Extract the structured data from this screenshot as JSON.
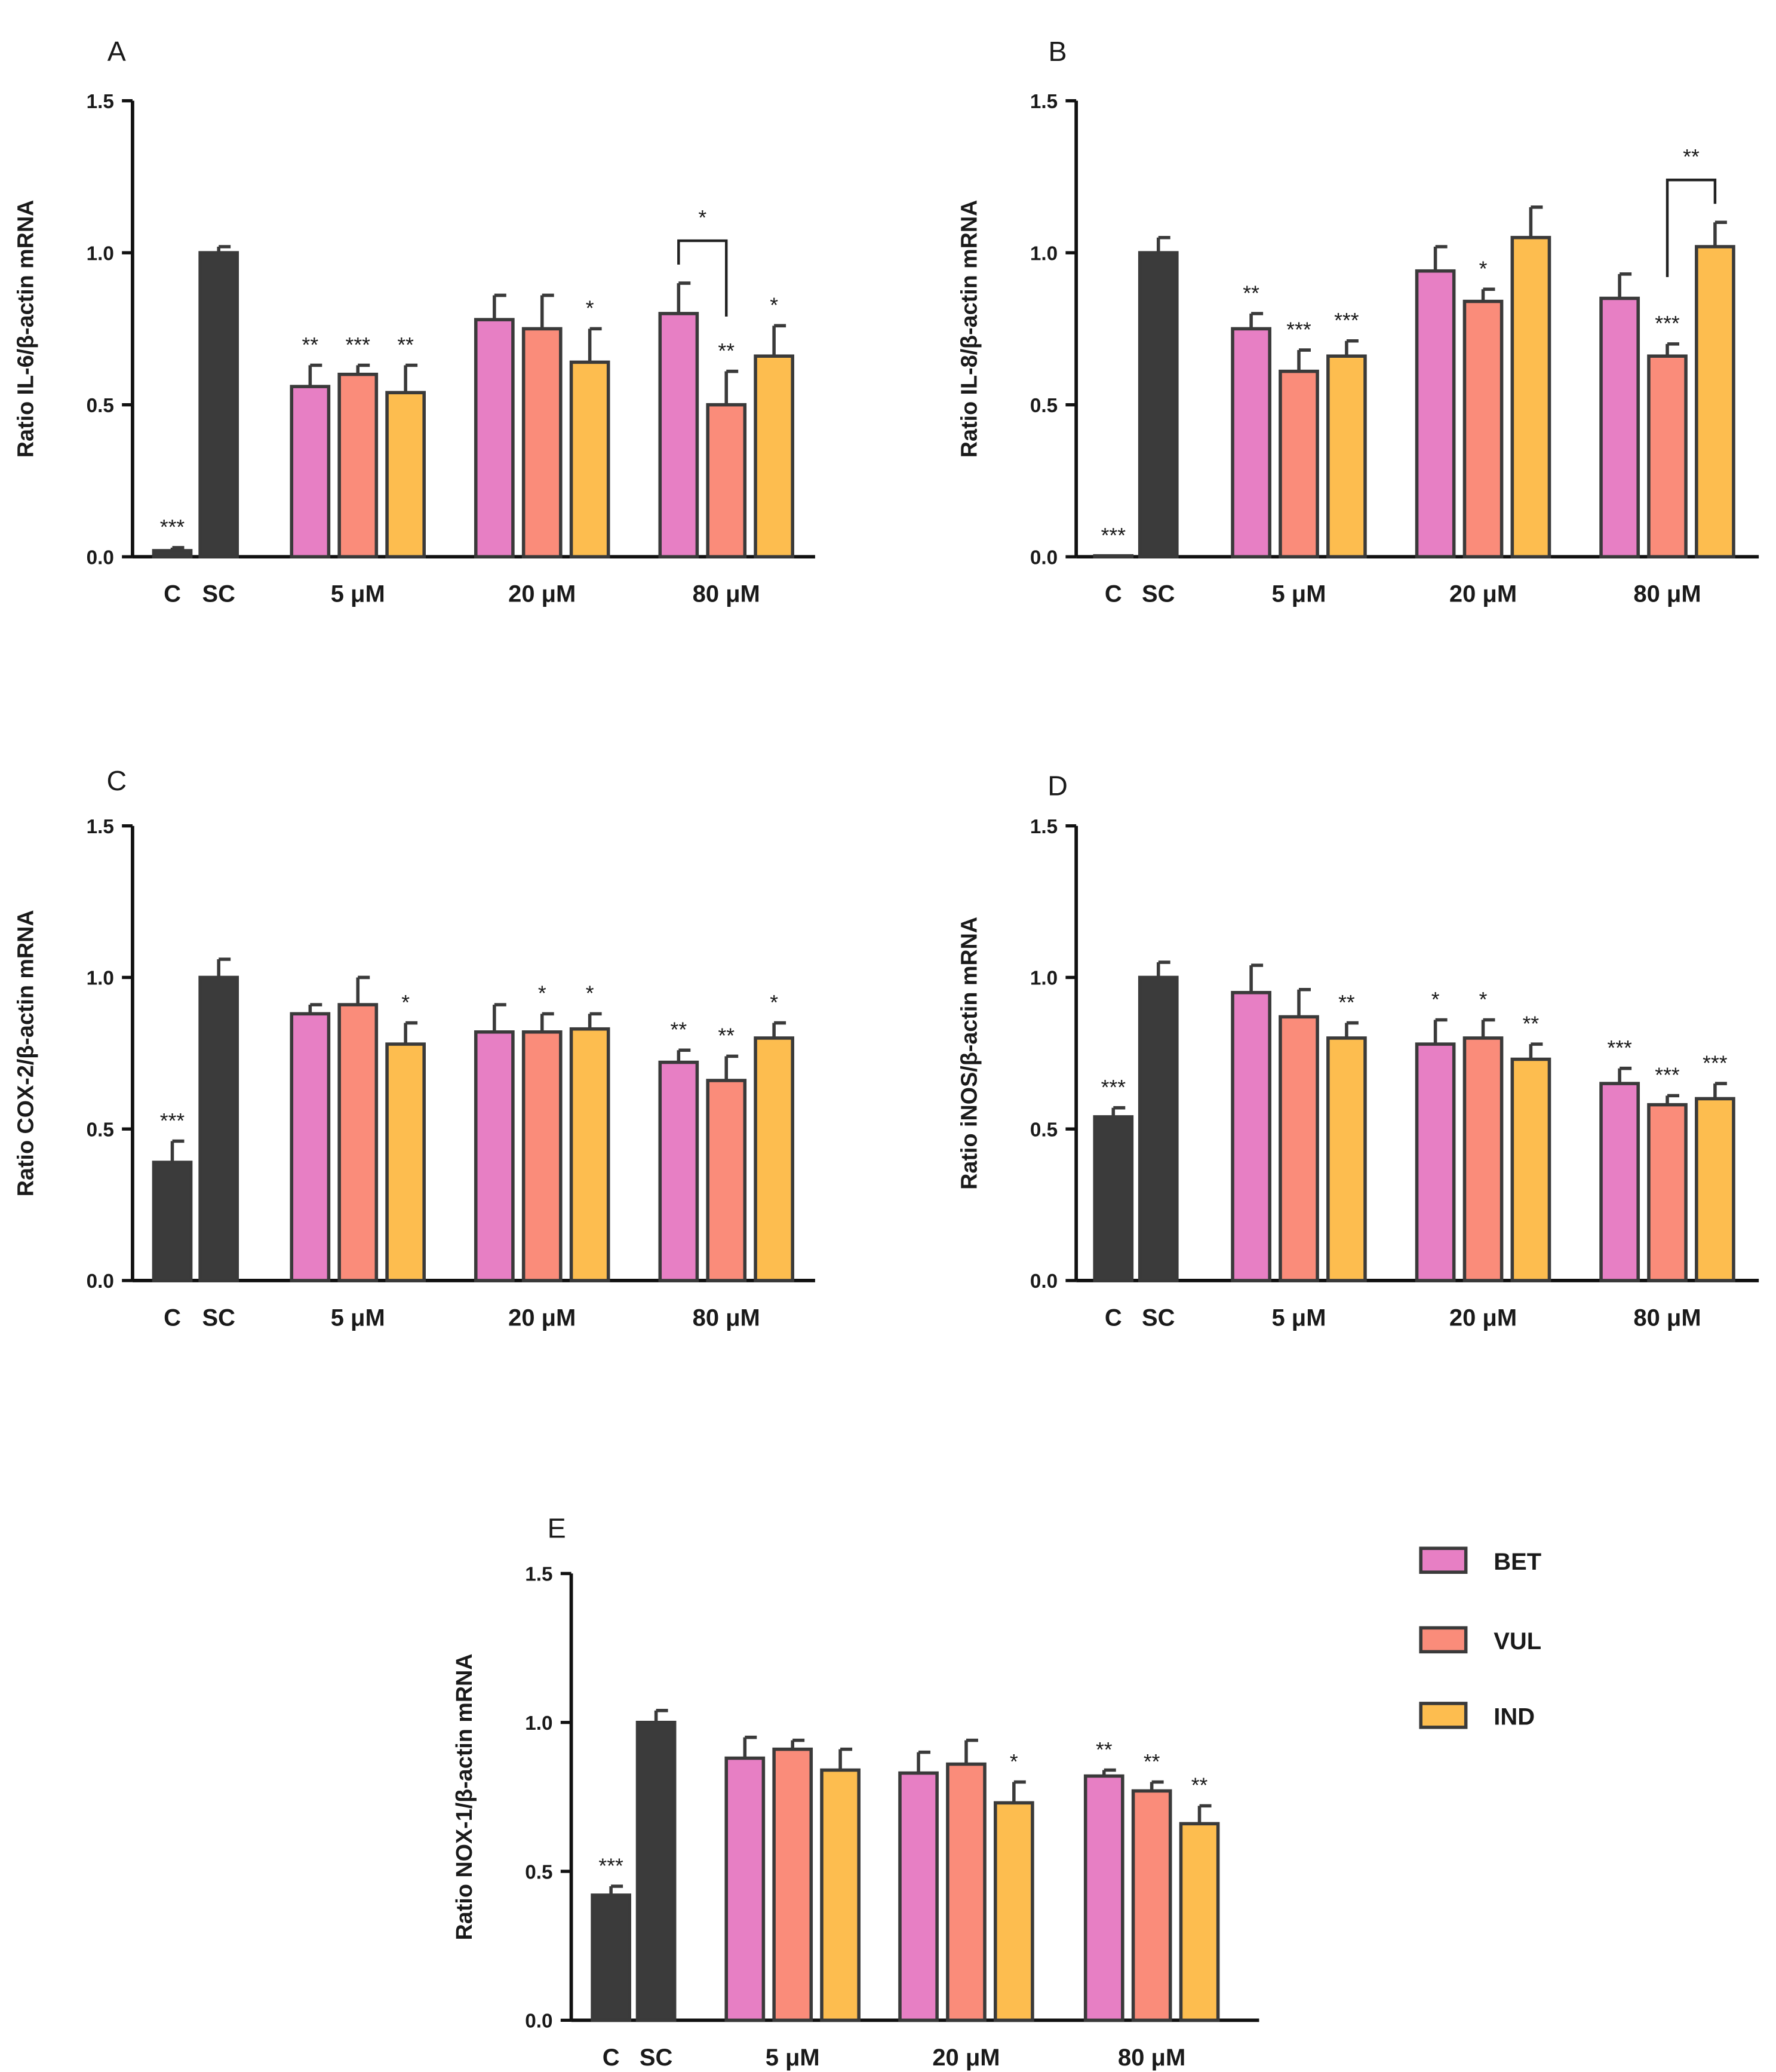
{
  "legend": {
    "placement": "right of panel E",
    "items": [
      {
        "label": "BET",
        "color": "#e77fc4"
      },
      {
        "label": "VUL",
        "color": "#fa8c7a"
      },
      {
        "label": "IND",
        "color": "#fdbd4f"
      }
    ]
  },
  "colors": {
    "control": "#3b3b3b",
    "outline": "#3a3a3a"
  },
  "chart_data": [
    {
      "panel": "A",
      "type": "bar",
      "ylabel": "Ratio IL-6/β-actin mRNA",
      "ylim": [
        0,
        1.5
      ],
      "yticks": [
        "0.0",
        "0.5",
        "1.0",
        "1.5"
      ],
      "xlabels": [
        "C",
        "SC",
        "5 μM",
        "20 μM",
        "80 μM"
      ],
      "controls": [
        {
          "label": "C",
          "value": 0.02,
          "err": 0.01,
          "sig": "***"
        },
        {
          "label": "SC",
          "value": 1.0,
          "err": 0.02,
          "sig": ""
        }
      ],
      "groups": [
        {
          "label": "5 μM",
          "values": [
            0.56,
            0.6,
            0.54
          ],
          "errs": [
            0.07,
            0.03,
            0.09
          ],
          "sig": [
            "**",
            "***",
            "**"
          ]
        },
        {
          "label": "20 μM",
          "values": [
            0.78,
            0.75,
            0.64
          ],
          "errs": [
            0.08,
            0.11,
            0.11
          ],
          "sig": [
            "",
            "",
            "*"
          ]
        },
        {
          "label": "80 μM",
          "values": [
            0.8,
            0.5,
            0.66
          ],
          "errs": [
            0.1,
            0.11,
            0.1
          ],
          "sig": [
            "",
            "**",
            "*"
          ]
        }
      ],
      "bracket": {
        "group": 2,
        "from": 0,
        "to": 1,
        "label": "*"
      }
    },
    {
      "panel": "B",
      "type": "bar",
      "ylabel": "Ratio IL-8/β-actin mRNA",
      "ylim": [
        0,
        1.5
      ],
      "yticks": [
        "0.0",
        "0.5",
        "1.0",
        "1.5"
      ],
      "xlabels": [
        "C",
        "SC",
        "5 μM",
        "20 μM",
        "80 μM"
      ],
      "controls": [
        {
          "label": "C",
          "value": 0.003,
          "err": 0.0,
          "sig": "***"
        },
        {
          "label": "SC",
          "value": 1.0,
          "err": 0.05,
          "sig": ""
        }
      ],
      "groups": [
        {
          "label": "5 μM",
          "values": [
            0.75,
            0.61,
            0.66
          ],
          "errs": [
            0.05,
            0.07,
            0.05
          ],
          "sig": [
            "**",
            "***",
            "***"
          ]
        },
        {
          "label": "20 μM",
          "values": [
            0.94,
            0.84,
            1.05
          ],
          "errs": [
            0.08,
            0.04,
            0.1
          ],
          "sig": [
            "",
            "*",
            ""
          ]
        },
        {
          "label": "80 μM",
          "values": [
            0.85,
            0.66,
            1.02
          ],
          "errs": [
            0.08,
            0.04,
            0.08
          ],
          "sig": [
            "",
            "***",
            ""
          ]
        }
      ],
      "bracket": {
        "group": 2,
        "from": 1,
        "to": 2,
        "label": "**"
      }
    },
    {
      "panel": "C",
      "type": "bar",
      "ylabel": "Ratio COX-2/β-actin mRNA",
      "ylim": [
        0,
        1.5
      ],
      "yticks": [
        "0.0",
        "0.5",
        "1.0",
        "1.5"
      ],
      "xlabels": [
        "C",
        "SC",
        "5 μM",
        "20 μM",
        "80 μM"
      ],
      "controls": [
        {
          "label": "C",
          "value": 0.39,
          "err": 0.07,
          "sig": "***"
        },
        {
          "label": "SC",
          "value": 1.0,
          "err": 0.06,
          "sig": ""
        }
      ],
      "groups": [
        {
          "label": "5 μM",
          "values": [
            0.88,
            0.91,
            0.78
          ],
          "errs": [
            0.03,
            0.09,
            0.07
          ],
          "sig": [
            "",
            "",
            "*"
          ]
        },
        {
          "label": "20 μM",
          "values": [
            0.82,
            0.82,
            0.83
          ],
          "errs": [
            0.09,
            0.06,
            0.05
          ],
          "sig": [
            "",
            "*",
            "*"
          ]
        },
        {
          "label": "80 μM",
          "values": [
            0.72,
            0.66,
            0.8
          ],
          "errs": [
            0.04,
            0.08,
            0.05
          ],
          "sig": [
            "**",
            "**",
            "*"
          ]
        }
      ]
    },
    {
      "panel": "D",
      "type": "bar",
      "ylabel": "Ratio iNOS/β-actin mRNA",
      "ylim": [
        0,
        1.5
      ],
      "yticks": [
        "0.0",
        "0.5",
        "1.0",
        "1.5"
      ],
      "xlabels": [
        "C",
        "SC",
        "5 μM",
        "20 μM",
        "80 μM"
      ],
      "controls": [
        {
          "label": "C",
          "value": 0.54,
          "err": 0.03,
          "sig": "***"
        },
        {
          "label": "SC",
          "value": 1.0,
          "err": 0.05,
          "sig": ""
        }
      ],
      "groups": [
        {
          "label": "5 μM",
          "values": [
            0.95,
            0.87,
            0.8
          ],
          "errs": [
            0.09,
            0.09,
            0.05
          ],
          "sig": [
            "",
            "",
            "**"
          ]
        },
        {
          "label": "20 μM",
          "values": [
            0.78,
            0.8,
            0.73
          ],
          "errs": [
            0.08,
            0.06,
            0.05
          ],
          "sig": [
            "*",
            "*",
            "**"
          ]
        },
        {
          "label": "80 μM",
          "values": [
            0.65,
            0.58,
            0.6
          ],
          "errs": [
            0.05,
            0.03,
            0.05
          ],
          "sig": [
            "***",
            "***",
            "***"
          ]
        }
      ]
    },
    {
      "panel": "E",
      "type": "bar",
      "ylabel": "Ratio NOX-1/β-actin mRNA",
      "ylim": [
        0,
        1.5
      ],
      "yticks": [
        "0.0",
        "0.5",
        "1.0",
        "1.5"
      ],
      "xlabels": [
        "C",
        "SC",
        "5 μM",
        "20 μM",
        "80 μM"
      ],
      "controls": [
        {
          "label": "C",
          "value": 0.42,
          "err": 0.03,
          "sig": "***"
        },
        {
          "label": "SC",
          "value": 1.0,
          "err": 0.04,
          "sig": ""
        }
      ],
      "groups": [
        {
          "label": "5 μM",
          "values": [
            0.88,
            0.91,
            0.84
          ],
          "errs": [
            0.07,
            0.03,
            0.07
          ],
          "sig": [
            "",
            "",
            ""
          ]
        },
        {
          "label": "20 μM",
          "values": [
            0.83,
            0.86,
            0.73
          ],
          "errs": [
            0.07,
            0.08,
            0.07
          ],
          "sig": [
            "",
            "",
            "*"
          ]
        },
        {
          "label": "80 μM",
          "values": [
            0.82,
            0.77,
            0.66
          ],
          "errs": [
            0.02,
            0.03,
            0.06
          ],
          "sig": [
            "**",
            "**",
            "**"
          ]
        }
      ]
    }
  ]
}
